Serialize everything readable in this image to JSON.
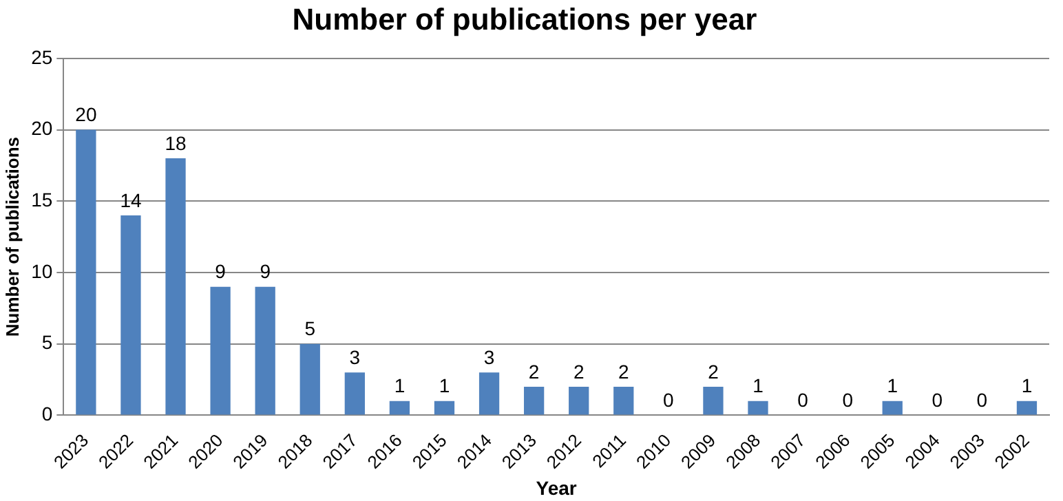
{
  "chart_data": {
    "type": "bar",
    "title": "Number of publications per year",
    "xlabel": "Year",
    "ylabel": "Number of publications",
    "categories": [
      "2023",
      "2022",
      "2021",
      "2020",
      "2019",
      "2018",
      "2017",
      "2016",
      "2015",
      "2014",
      "2013",
      "2012",
      "2011",
      "2010",
      "2009",
      "2008",
      "2007",
      "2006",
      "2005",
      "2004",
      "2003",
      "2002"
    ],
    "values": [
      20,
      14,
      18,
      9,
      9,
      5,
      3,
      1,
      1,
      3,
      2,
      2,
      2,
      0,
      2,
      1,
      0,
      0,
      1,
      0,
      0,
      1
    ],
    "color": "#4f81bd",
    "ylim": [
      0,
      25
    ],
    "yticks": [
      0,
      5,
      10,
      15,
      20,
      25
    ],
    "grid": "y",
    "legend": false,
    "data_labels": true
  }
}
